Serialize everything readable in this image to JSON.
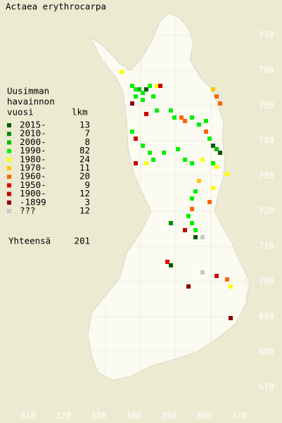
{
  "title": "Actaea erythrocarpa",
  "legend": {
    "header": [
      "Uusimman",
      "havainnon",
      "vuosi"
    ],
    "count_header": "lkm",
    "rows": [
      {
        "label": "2015-",
        "count": 13,
        "color": "#005a00"
      },
      {
        "label": "2010-",
        "count": 7,
        "color": "#008c00"
      },
      {
        "label": "2000-",
        "count": 8,
        "color": "#00c000"
      },
      {
        "label": "1990-",
        "count": 82,
        "color": "#00f000"
      },
      {
        "label": "1980-",
        "count": 24,
        "color": "#ffff00"
      },
      {
        "label": "1970-",
        "count": 11,
        "color": "#ffc800"
      },
      {
        "label": "1960-",
        "count": 20,
        "color": "#ff6400"
      },
      {
        "label": "1950-",
        "count": 9,
        "color": "#e60000"
      },
      {
        "label": "1900-",
        "count": 12,
        "color": "#c80000"
      },
      {
        "label": "-1899",
        "count": 3,
        "color": "#8c0000"
      },
      {
        "label": "???",
        "count": 12,
        "color": "#c8c8c8"
      }
    ],
    "total_label": "Yhteensä",
    "total": 201
  },
  "axes": {
    "x_ticks": [
      310,
      320,
      330,
      340,
      350,
      360,
      370
    ],
    "y_ticks": [
      670,
      680,
      690,
      700,
      710,
      720,
      730,
      740,
      750,
      760,
      770
    ]
  },
  "observations": [
    {
      "x": 334,
      "y": 759,
      "row": 4
    },
    {
      "x": 337,
      "y": 755,
      "row": 3
    },
    {
      "x": 338,
      "y": 754,
      "row": 3
    },
    {
      "x": 339,
      "y": 754,
      "row": 2
    },
    {
      "x": 340,
      "y": 753,
      "row": 3
    },
    {
      "x": 341,
      "y": 754,
      "row": 0
    },
    {
      "x": 342,
      "y": 755,
      "row": 3
    },
    {
      "x": 344,
      "y": 755,
      "row": 4
    },
    {
      "x": 345,
      "y": 755,
      "row": 8
    },
    {
      "x": 338,
      "y": 752,
      "row": 3
    },
    {
      "x": 340,
      "y": 751,
      "row": 3
    },
    {
      "x": 343,
      "y": 752,
      "row": 3
    },
    {
      "x": 337,
      "y": 750,
      "row": 9
    },
    {
      "x": 341,
      "y": 747,
      "row": 8
    },
    {
      "x": 344,
      "y": 748,
      "row": 3
    },
    {
      "x": 348,
      "y": 748,
      "row": 3
    },
    {
      "x": 349,
      "y": 746,
      "row": 3
    },
    {
      "x": 351,
      "y": 746,
      "row": 6
    },
    {
      "x": 352,
      "y": 745,
      "row": 6
    },
    {
      "x": 354,
      "y": 746,
      "row": 3
    },
    {
      "x": 356,
      "y": 744,
      "row": 3
    },
    {
      "x": 358,
      "y": 745,
      "row": 3
    },
    {
      "x": 360,
      "y": 754,
      "row": 5
    },
    {
      "x": 361,
      "y": 752,
      "row": 6
    },
    {
      "x": 362,
      "y": 750,
      "row": 6
    },
    {
      "x": 358,
      "y": 742,
      "row": 6
    },
    {
      "x": 359,
      "y": 740,
      "row": 3
    },
    {
      "x": 360,
      "y": 738,
      "row": 0
    },
    {
      "x": 361,
      "y": 737,
      "row": 2
    },
    {
      "x": 362,
      "y": 736,
      "row": 0
    },
    {
      "x": 337,
      "y": 742,
      "row": 3
    },
    {
      "x": 338,
      "y": 740,
      "row": 8
    },
    {
      "x": 340,
      "y": 738,
      "row": 3
    },
    {
      "x": 342,
      "y": 736,
      "row": 3
    },
    {
      "x": 343,
      "y": 734,
      "row": 3
    },
    {
      "x": 341,
      "y": 733,
      "row": 4
    },
    {
      "x": 338,
      "y": 733,
      "row": 8
    },
    {
      "x": 346,
      "y": 736,
      "row": 3
    },
    {
      "x": 350,
      "y": 737,
      "row": 3
    },
    {
      "x": 352,
      "y": 734,
      "row": 3
    },
    {
      "x": 354,
      "y": 733,
      "row": 3
    },
    {
      "x": 357,
      "y": 734,
      "row": 4
    },
    {
      "x": 360,
      "y": 733,
      "row": 3
    },
    {
      "x": 361,
      "y": 732,
      "row": 4
    },
    {
      "x": 364,
      "y": 730,
      "row": 4
    },
    {
      "x": 356,
      "y": 728,
      "row": 5
    },
    {
      "x": 355,
      "y": 725,
      "row": 3
    },
    {
      "x": 354,
      "y": 723,
      "row": 3
    },
    {
      "x": 360,
      "y": 726,
      "row": 4
    },
    {
      "x": 359,
      "y": 722,
      "row": 6
    },
    {
      "x": 354,
      "y": 720,
      "row": 6
    },
    {
      "x": 353,
      "y": 718,
      "row": 3
    },
    {
      "x": 354,
      "y": 716,
      "row": 3
    },
    {
      "x": 352,
      "y": 714,
      "row": 8
    },
    {
      "x": 355,
      "y": 714,
      "row": 3
    },
    {
      "x": 355,
      "y": 712,
      "row": 0
    },
    {
      "x": 357,
      "y": 712,
      "row": 10
    },
    {
      "x": 348,
      "y": 716,
      "row": 1
    },
    {
      "x": 347,
      "y": 705,
      "row": 7
    },
    {
      "x": 348,
      "y": 704,
      "row": 0
    },
    {
      "x": 353,
      "y": 698,
      "row": 9
    },
    {
      "x": 357,
      "y": 702,
      "row": 10
    },
    {
      "x": 361,
      "y": 701,
      "row": 8
    },
    {
      "x": 364,
      "y": 700,
      "row": 6
    },
    {
      "x": 365,
      "y": 698,
      "row": 4
    },
    {
      "x": 365,
      "y": 689,
      "row": 9
    }
  ]
}
